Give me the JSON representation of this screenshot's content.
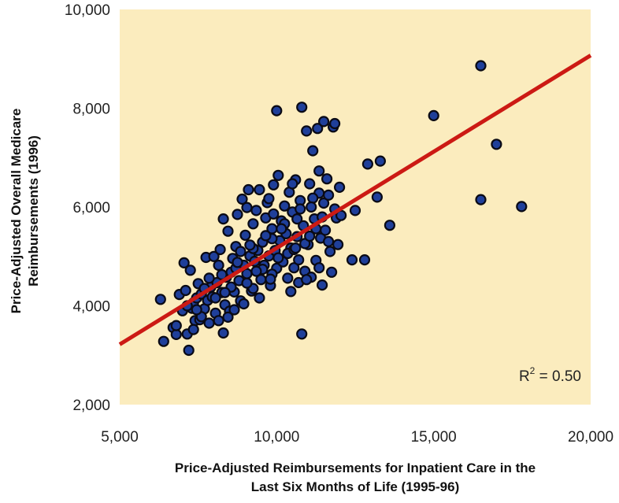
{
  "chart_data": {
    "type": "scatter",
    "title": "",
    "xlabel_line1": "Price-Adjusted Reimbursements for Inpatient Care in the",
    "xlabel_line2": "Last Six Months of Life (1995-96)",
    "ylabel_line1": "Price-Adjusted Overall Medicare",
    "ylabel_line2": "Reimbursements (1996)",
    "xlim": [
      5000,
      20000
    ],
    "ylim": [
      2000,
      10000
    ],
    "xticks": [
      5000,
      10000,
      15000,
      20000
    ],
    "xtick_labels": [
      "5,000",
      "10,000",
      "15,000",
      "20,000"
    ],
    "yticks": [
      2000,
      4000,
      6000,
      8000,
      10000
    ],
    "ytick_labels": [
      "2,000",
      "4,000",
      "6,000",
      "8,000",
      "10,000"
    ],
    "annotation_base": "R",
    "annotation_sup": "2",
    "annotation_rest": " = 0.50",
    "regression_line": {
      "x": [
        5000,
        20000
      ],
      "y": [
        3220,
        9070
      ]
    },
    "colors": {
      "plot_background": "#fbecbe",
      "point_fill": "#1f3f9a",
      "point_stroke": "#0a0a14",
      "line": "#cc1a14"
    },
    "points": [
      [
        6300,
        4130
      ],
      [
        6400,
        3280
      ],
      [
        6700,
        3560
      ],
      [
        6800,
        3420
      ],
      [
        6900,
        4230
      ],
      [
        7000,
        3900
      ],
      [
        7050,
        4870
      ],
      [
        7100,
        4310
      ],
      [
        7150,
        3430
      ],
      [
        7200,
        3100
      ],
      [
        7250,
        4720
      ],
      [
        7300,
        3950
      ],
      [
        7350,
        4060
      ],
      [
        7400,
        3700
      ],
      [
        7450,
        4160
      ],
      [
        7500,
        4450
      ],
      [
        7550,
        3720
      ],
      [
        7600,
        4240
      ],
      [
        7700,
        3940
      ],
      [
        7750,
        4980
      ],
      [
        7800,
        4110
      ],
      [
        7850,
        3650
      ],
      [
        7900,
        4380
      ],
      [
        7950,
        4180
      ],
      [
        8000,
        5000
      ],
      [
        8050,
        3850
      ],
      [
        8100,
        4470
      ],
      [
        8150,
        3700
      ],
      [
        8200,
        5140
      ],
      [
        8250,
        4270
      ],
      [
        8300,
        3450
      ],
      [
        8350,
        4020
      ],
      [
        8400,
        4580
      ],
      [
        8450,
        5510
      ],
      [
        8500,
        3890
      ],
      [
        8550,
        4680
      ],
      [
        8600,
        4960
      ],
      [
        8650,
        4280
      ],
      [
        8700,
        5200
      ],
      [
        8750,
        5850
      ],
      [
        8800,
        4510
      ],
      [
        8850,
        4100
      ],
      [
        8900,
        6160
      ],
      [
        8950,
        4820
      ],
      [
        9000,
        5430
      ],
      [
        9050,
        4650
      ],
      [
        9100,
        6350
      ],
      [
        9150,
        5010
      ],
      [
        9200,
        4300
      ],
      [
        9250,
        5660
      ],
      [
        9300,
        4900
      ],
      [
        9350,
        5930
      ],
      [
        9400,
        5120
      ],
      [
        9450,
        6350
      ],
      [
        9500,
        4530
      ],
      [
        9550,
        5290
      ],
      [
        9600,
        4820
      ],
      [
        9650,
        5780
      ],
      [
        9700,
        6090
      ],
      [
        9750,
        5010
      ],
      [
        9800,
        4410
      ],
      [
        9850,
        5560
      ],
      [
        9900,
        6450
      ],
      [
        9950,
        5120
      ],
      [
        10000,
        4760
      ],
      [
        10050,
        6640
      ],
      [
        10100,
        5320
      ],
      [
        10150,
        5720
      ],
      [
        10200,
        4890
      ],
      [
        10250,
        6020
      ],
      [
        10300,
        5460
      ],
      [
        10350,
        4560
      ],
      [
        10400,
        6300
      ],
      [
        10450,
        5170
      ],
      [
        10500,
        5900
      ],
      [
        10550,
        4770
      ],
      [
        10600,
        6550
      ],
      [
        10650,
        5400
      ],
      [
        10700,
        4930
      ],
      [
        10750,
        6130
      ],
      [
        10800,
        8020
      ],
      [
        10850,
        5620
      ],
      [
        10900,
        4700
      ],
      [
        10950,
        7540
      ],
      [
        11000,
        5240
      ],
      [
        11050,
        6470
      ],
      [
        11100,
        4580
      ],
      [
        11150,
        7140
      ],
      [
        11200,
        5760
      ],
      [
        11250,
        4920
      ],
      [
        11300,
        7590
      ],
      [
        11350,
        6280
      ],
      [
        11400,
        5370
      ],
      [
        11450,
        4420
      ],
      [
        11500,
        6080
      ],
      [
        11550,
        5530
      ],
      [
        11600,
        6570
      ],
      [
        11700,
        5100
      ],
      [
        11750,
        4680
      ],
      [
        11800,
        7620
      ],
      [
        11900,
        5780
      ],
      [
        12000,
        6400
      ],
      [
        12400,
        4930
      ],
      [
        12500,
        5930
      ],
      [
        12800,
        4930
      ],
      [
        12900,
        6870
      ],
      [
        13200,
        6200
      ],
      [
        13300,
        6930
      ],
      [
        13600,
        5630
      ],
      [
        15000,
        7850
      ],
      [
        16500,
        6150
      ],
      [
        16500,
        8860
      ],
      [
        17000,
        7270
      ],
      [
        17800,
        6010
      ],
      [
        10000,
        7950
      ],
      [
        10800,
        3430
      ],
      [
        11500,
        7730
      ],
      [
        11850,
        7690
      ],
      [
        6800,
        3600
      ],
      [
        7600,
        3780
      ],
      [
        8150,
        4820
      ],
      [
        8700,
        4760
      ],
      [
        9250,
        4350
      ],
      [
        9850,
        4640
      ],
      [
        10350,
        5060
      ],
      [
        10900,
        5260
      ],
      [
        11250,
        5560
      ],
      [
        11650,
        5300
      ],
      [
        7450,
        3920
      ],
      [
        8050,
        4160
      ],
      [
        8550,
        4380
      ],
      [
        9050,
        4460
      ],
      [
        9550,
        4740
      ],
      [
        10050,
        4970
      ],
      [
        10550,
        5140
      ],
      [
        11050,
        5410
      ],
      [
        11450,
        5800
      ],
      [
        11850,
        5960
      ],
      [
        7850,
        4560
      ],
      [
        8350,
        4270
      ],
      [
        8850,
        5100
      ],
      [
        9350,
        4700
      ],
      [
        9850,
        5360
      ],
      [
        10250,
        5660
      ],
      [
        10750,
        5960
      ],
      [
        11150,
        6180
      ],
      [
        11650,
        6240
      ],
      [
        7150,
        4000
      ],
      [
        7700,
        4350
      ],
      [
        8250,
        4630
      ],
      [
        8750,
        4880
      ],
      [
        9250,
        5160
      ],
      [
        9650,
        5420
      ],
      [
        10150,
        5560
      ],
      [
        10650,
        5760
      ],
      [
        11100,
        6000
      ],
      [
        7350,
        3520
      ],
      [
        8450,
        3770
      ],
      [
        9450,
        4160
      ],
      [
        10450,
        4290
      ],
      [
        11350,
        4770
      ],
      [
        12050,
        5830
      ],
      [
        9900,
        5860
      ],
      [
        10700,
        4470
      ],
      [
        8300,
        5760
      ],
      [
        9050,
        5990
      ],
      [
        9750,
        6170
      ],
      [
        10500,
        6470
      ],
      [
        11350,
        6730
      ],
      [
        11950,
        5240
      ],
      [
        8650,
        3920
      ],
      [
        9800,
        4540
      ],
      [
        10950,
        4530
      ],
      [
        9150,
        5230
      ],
      [
        8950,
        4040
      ],
      [
        10600,
        5170
      ]
    ]
  }
}
